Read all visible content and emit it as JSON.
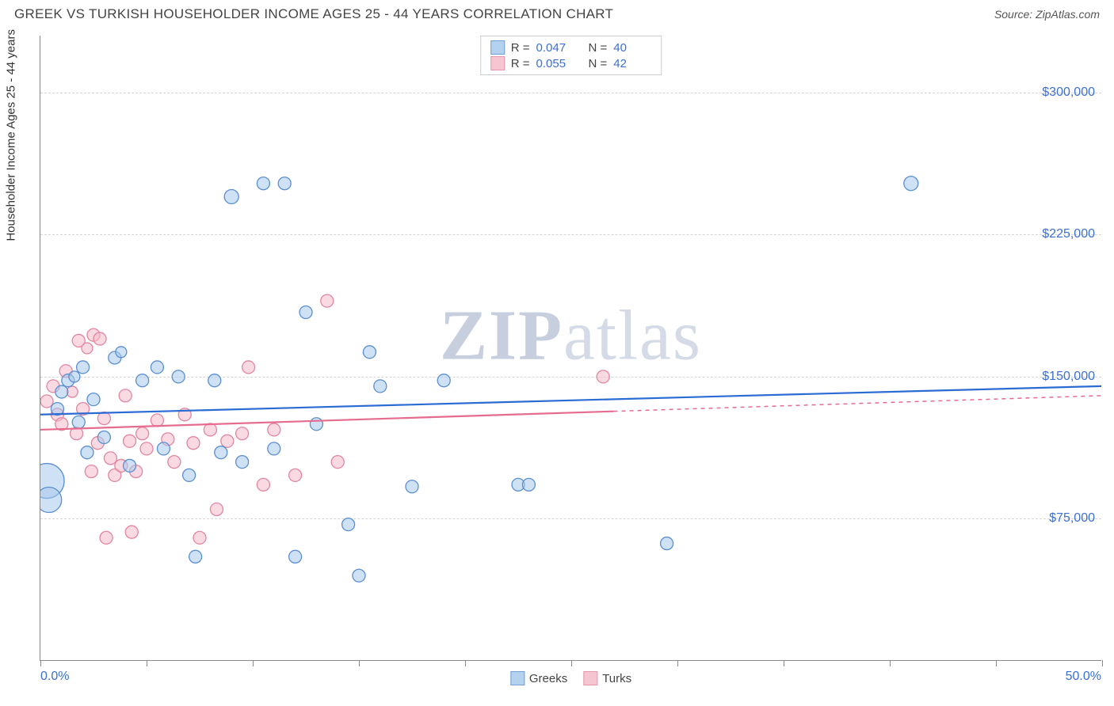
{
  "title": "GREEK VS TURKISH HOUSEHOLDER INCOME AGES 25 - 44 YEARS CORRELATION CHART",
  "source": "Source: ZipAtlas.com",
  "y_axis_title": "Householder Income Ages 25 - 44 years",
  "watermark_bold": "ZIP",
  "watermark_rest": "atlas",
  "chart": {
    "type": "scatter",
    "background_color": "#ffffff",
    "grid_color": "#d5d5d5",
    "axis_color": "#888888",
    "xlim": [
      0,
      50
    ],
    "ylim": [
      0,
      330000
    ],
    "x_ticks": [
      0,
      5,
      10,
      15,
      20,
      25,
      30,
      35,
      40,
      45,
      50
    ],
    "x_label_min": "0.0%",
    "x_label_max": "50.0%",
    "y_ticks": [
      {
        "value": 75000,
        "label": "$75,000"
      },
      {
        "value": 150000,
        "label": "$150,000"
      },
      {
        "value": 225000,
        "label": "$225,000"
      },
      {
        "value": 300000,
        "label": "$300,000"
      }
    ],
    "series": [
      {
        "name": "Greeks",
        "fill": "#a7c9ec",
        "fill_opacity": 0.55,
        "stroke": "#5a8fd0",
        "stroke_width": 1.3,
        "line_color": "#2b6bd4",
        "r_value": "0.047",
        "n_value": "40",
        "regression": {
          "x1": 0,
          "y1": 130000,
          "x2": 50,
          "y2": 145000,
          "solid_until_x": 50
        },
        "points": [
          {
            "x": 0.3,
            "y": 95000,
            "r": 22
          },
          {
            "x": 0.4,
            "y": 85000,
            "r": 16
          },
          {
            "x": 0.8,
            "y": 133000,
            "r": 8
          },
          {
            "x": 1.0,
            "y": 142000,
            "r": 8
          },
          {
            "x": 1.3,
            "y": 148000,
            "r": 8
          },
          {
            "x": 1.6,
            "y": 150000,
            "r": 7
          },
          {
            "x": 1.8,
            "y": 126000,
            "r": 8
          },
          {
            "x": 2.0,
            "y": 155000,
            "r": 8
          },
          {
            "x": 2.2,
            "y": 110000,
            "r": 8
          },
          {
            "x": 2.5,
            "y": 138000,
            "r": 8
          },
          {
            "x": 3.0,
            "y": 118000,
            "r": 8
          },
          {
            "x": 3.5,
            "y": 160000,
            "r": 8
          },
          {
            "x": 3.8,
            "y": 163000,
            "r": 7
          },
          {
            "x": 4.2,
            "y": 103000,
            "r": 8
          },
          {
            "x": 4.8,
            "y": 148000,
            "r": 8
          },
          {
            "x": 5.5,
            "y": 155000,
            "r": 8
          },
          {
            "x": 5.8,
            "y": 112000,
            "r": 8
          },
          {
            "x": 6.5,
            "y": 150000,
            "r": 8
          },
          {
            "x": 7.0,
            "y": 98000,
            "r": 8
          },
          {
            "x": 7.3,
            "y": 55000,
            "r": 8
          },
          {
            "x": 8.2,
            "y": 148000,
            "r": 8
          },
          {
            "x": 8.5,
            "y": 110000,
            "r": 8
          },
          {
            "x": 9.0,
            "y": 245000,
            "r": 9
          },
          {
            "x": 9.5,
            "y": 105000,
            "r": 8
          },
          {
            "x": 10.5,
            "y": 252000,
            "r": 8
          },
          {
            "x": 11.0,
            "y": 112000,
            "r": 8
          },
          {
            "x": 11.5,
            "y": 252000,
            "r": 8
          },
          {
            "x": 12.0,
            "y": 55000,
            "r": 8
          },
          {
            "x": 12.5,
            "y": 184000,
            "r": 8
          },
          {
            "x": 13.0,
            "y": 125000,
            "r": 8
          },
          {
            "x": 14.5,
            "y": 72000,
            "r": 8
          },
          {
            "x": 15.0,
            "y": 45000,
            "r": 8
          },
          {
            "x": 15.5,
            "y": 163000,
            "r": 8
          },
          {
            "x": 16.0,
            "y": 145000,
            "r": 8
          },
          {
            "x": 17.5,
            "y": 92000,
            "r": 8
          },
          {
            "x": 19.0,
            "y": 148000,
            "r": 8
          },
          {
            "x": 22.5,
            "y": 93000,
            "r": 8
          },
          {
            "x": 23.0,
            "y": 93000,
            "r": 8
          },
          {
            "x": 29.5,
            "y": 62000,
            "r": 8
          },
          {
            "x": 41.0,
            "y": 252000,
            "r": 9
          }
        ]
      },
      {
        "name": "Turks",
        "fill": "#f4bcca",
        "fill_opacity": 0.55,
        "stroke": "#e285a0",
        "stroke_width": 1.3,
        "line_color": "#e56b8f",
        "r_value": "0.055",
        "n_value": "42",
        "regression": {
          "x1": 0,
          "y1": 122000,
          "x2": 50,
          "y2": 140000,
          "solid_until_x": 27
        },
        "points": [
          {
            "x": 0.3,
            "y": 137000,
            "r": 8
          },
          {
            "x": 0.6,
            "y": 145000,
            "r": 8
          },
          {
            "x": 0.8,
            "y": 130000,
            "r": 8
          },
          {
            "x": 1.0,
            "y": 125000,
            "r": 8
          },
          {
            "x": 1.2,
            "y": 153000,
            "r": 8
          },
          {
            "x": 1.5,
            "y": 142000,
            "r": 7
          },
          {
            "x": 1.7,
            "y": 120000,
            "r": 8
          },
          {
            "x": 1.8,
            "y": 169000,
            "r": 8
          },
          {
            "x": 2.0,
            "y": 133000,
            "r": 8
          },
          {
            "x": 2.2,
            "y": 165000,
            "r": 7
          },
          {
            "x": 2.4,
            "y": 100000,
            "r": 8
          },
          {
            "x": 2.5,
            "y": 172000,
            "r": 8
          },
          {
            "x": 2.7,
            "y": 115000,
            "r": 8
          },
          {
            "x": 2.8,
            "y": 170000,
            "r": 8
          },
          {
            "x": 3.0,
            "y": 128000,
            "r": 8
          },
          {
            "x": 3.1,
            "y": 65000,
            "r": 8
          },
          {
            "x": 3.3,
            "y": 107000,
            "r": 8
          },
          {
            "x": 3.5,
            "y": 98000,
            "r": 8
          },
          {
            "x": 3.8,
            "y": 103000,
            "r": 8
          },
          {
            "x": 4.0,
            "y": 140000,
            "r": 8
          },
          {
            "x": 4.2,
            "y": 116000,
            "r": 8
          },
          {
            "x": 4.3,
            "y": 68000,
            "r": 8
          },
          {
            "x": 4.5,
            "y": 100000,
            "r": 8
          },
          {
            "x": 4.8,
            "y": 120000,
            "r": 8
          },
          {
            "x": 5.0,
            "y": 112000,
            "r": 8
          },
          {
            "x": 5.5,
            "y": 127000,
            "r": 8
          },
          {
            "x": 6.0,
            "y": 117000,
            "r": 8
          },
          {
            "x": 6.3,
            "y": 105000,
            "r": 8
          },
          {
            "x": 6.8,
            "y": 130000,
            "r": 8
          },
          {
            "x": 7.2,
            "y": 115000,
            "r": 8
          },
          {
            "x": 7.5,
            "y": 65000,
            "r": 8
          },
          {
            "x": 8.0,
            "y": 122000,
            "r": 8
          },
          {
            "x": 8.3,
            "y": 80000,
            "r": 8
          },
          {
            "x": 8.8,
            "y": 116000,
            "r": 8
          },
          {
            "x": 9.5,
            "y": 120000,
            "r": 8
          },
          {
            "x": 9.8,
            "y": 155000,
            "r": 8
          },
          {
            "x": 10.5,
            "y": 93000,
            "r": 8
          },
          {
            "x": 11.0,
            "y": 122000,
            "r": 8
          },
          {
            "x": 12.0,
            "y": 98000,
            "r": 8
          },
          {
            "x": 13.5,
            "y": 190000,
            "r": 8
          },
          {
            "x": 14.0,
            "y": 105000,
            "r": 8
          },
          {
            "x": 26.5,
            "y": 150000,
            "r": 8
          }
        ]
      }
    ]
  },
  "legend_top": {
    "r_label": "R =",
    "n_label": "N ="
  },
  "legend_bottom_label_0": "Greeks",
  "legend_bottom_label_1": "Turks"
}
